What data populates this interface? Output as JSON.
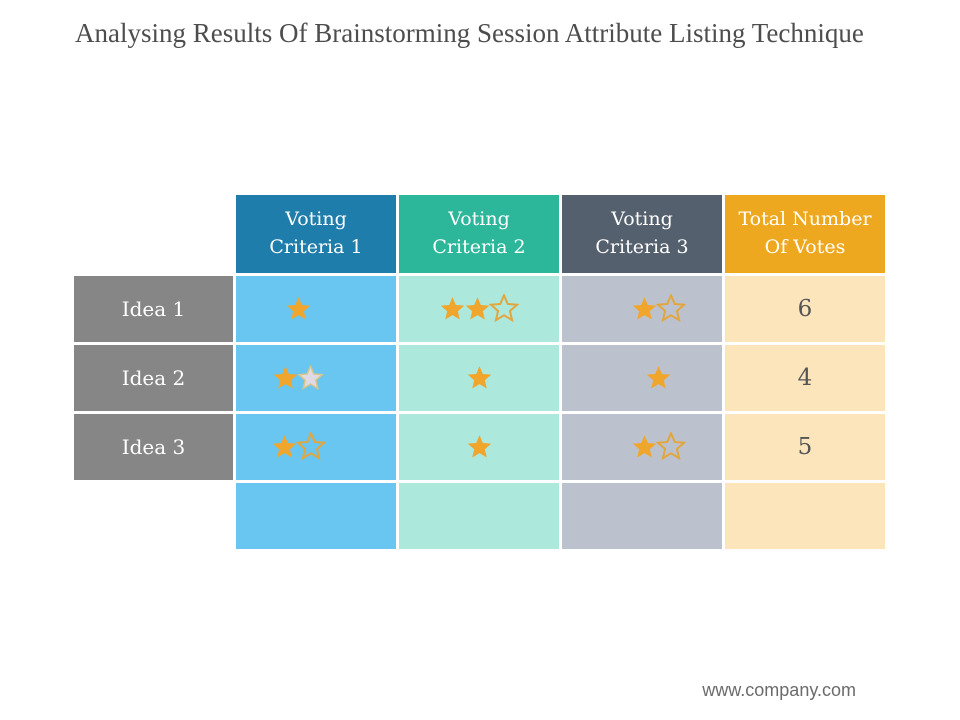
{
  "page": {
    "title": "Analysing Results Of Brainstorming Session Attribute Listing Technique",
    "footer_url": "www.company.com"
  },
  "colors": {
    "title_text": "#4d4d4d",
    "header_col1": "#1f7dab",
    "header_col2": "#2db79a",
    "header_col3": "#55606e",
    "header_col4": "#eea81f",
    "cell_col1": "#69c6f1",
    "cell_col2": "#ace8dc",
    "cell_col3": "#bcc2cd",
    "cell_col4": "#fce4bb",
    "row_label_bg": "#868686",
    "star_filled": "#f0a62d",
    "star_outline": "#e2a63e",
    "star_silver_fill": "#dfdae3",
    "star_silver_stroke": "#d9c487",
    "total_text": "#555555"
  },
  "table": {
    "headers": [
      {
        "line1": "Voting",
        "line2": "Criteria 1"
      },
      {
        "line1": "Voting",
        "line2": "Criteria 2"
      },
      {
        "line1": "Voting",
        "line2": "Criteria 3"
      },
      {
        "line1": "Total Number",
        "line2": "Of Votes"
      }
    ],
    "rows": [
      {
        "label": "Idea 1",
        "criteria": [
          [
            "filled"
          ],
          [
            "filled",
            "filled",
            "outline"
          ],
          [
            "filled",
            "outline"
          ]
        ],
        "total": "6"
      },
      {
        "label": "Idea 2",
        "criteria": [
          [
            "filled",
            "silver"
          ],
          [
            "filled"
          ],
          [
            "filled"
          ]
        ],
        "total": "4"
      },
      {
        "label": "Idea 3",
        "criteria": [
          [
            "filled",
            "outline"
          ],
          [
            "filled"
          ],
          [
            "filled",
            "outline"
          ]
        ],
        "total": "5"
      },
      {
        "label": "",
        "criteria": [
          [],
          [],
          []
        ],
        "total": ""
      }
    ]
  },
  "chart_data": {
    "type": "table",
    "title": "Analysing Results Of Brainstorming Session Attribute Listing Technique",
    "columns": [
      "",
      "Voting Criteria 1",
      "Voting Criteria 2",
      "Voting Criteria 3",
      "Total Number Of Votes"
    ],
    "star_counts": [
      {
        "idea": "Idea 1",
        "criteria1_filled": 1,
        "criteria1_outline": 0,
        "criteria2_filled": 2,
        "criteria2_outline": 1,
        "criteria3_filled": 1,
        "criteria3_outline": 1,
        "total_votes": 6
      },
      {
        "idea": "Idea 2",
        "criteria1_filled": 1,
        "criteria1_silver": 1,
        "criteria2_filled": 1,
        "criteria3_filled": 1,
        "total_votes": 4
      },
      {
        "idea": "Idea 3",
        "criteria1_filled": 1,
        "criteria1_outline": 1,
        "criteria2_filled": 1,
        "criteria3_filled": 1,
        "criteria3_outline": 1,
        "total_votes": 5
      }
    ]
  }
}
